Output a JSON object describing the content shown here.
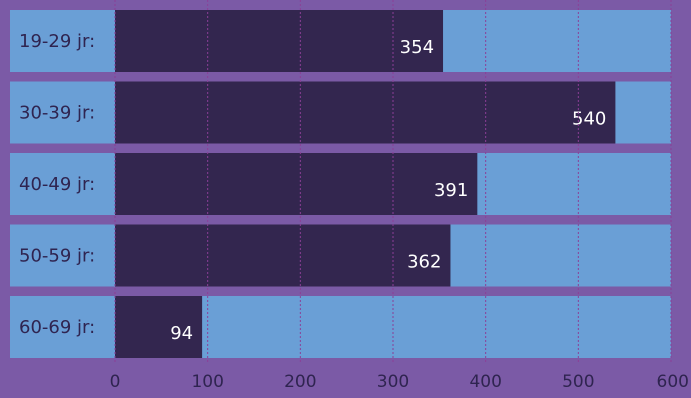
{
  "colors": {
    "background": "#7b5aa6",
    "track": "#6a9fd6",
    "bar": "#33264f",
    "grid": "#8b3f97",
    "text_dark": "#2f2450",
    "text_light": "#ffffff"
  },
  "chart_data": {
    "type": "bar",
    "orientation": "horizontal",
    "categories": [
      "19-29 jr:",
      "30-39 jr:",
      "40-49 jr:",
      "50-59 jr:",
      "60-69 jr:"
    ],
    "values": [
      354,
      540,
      391,
      362,
      94
    ],
    "value_labels": [
      "354",
      "540",
      "391",
      "362",
      "94"
    ],
    "xlim": [
      0,
      600
    ],
    "xticks": [
      0,
      100,
      200,
      300,
      400,
      500,
      600
    ],
    "xtick_labels": [
      "0",
      "100",
      "200",
      "300",
      "400",
      "500",
      "600"
    ],
    "title": "",
    "xlabel": "",
    "ylabel": "",
    "grid": true,
    "legend": false
  }
}
